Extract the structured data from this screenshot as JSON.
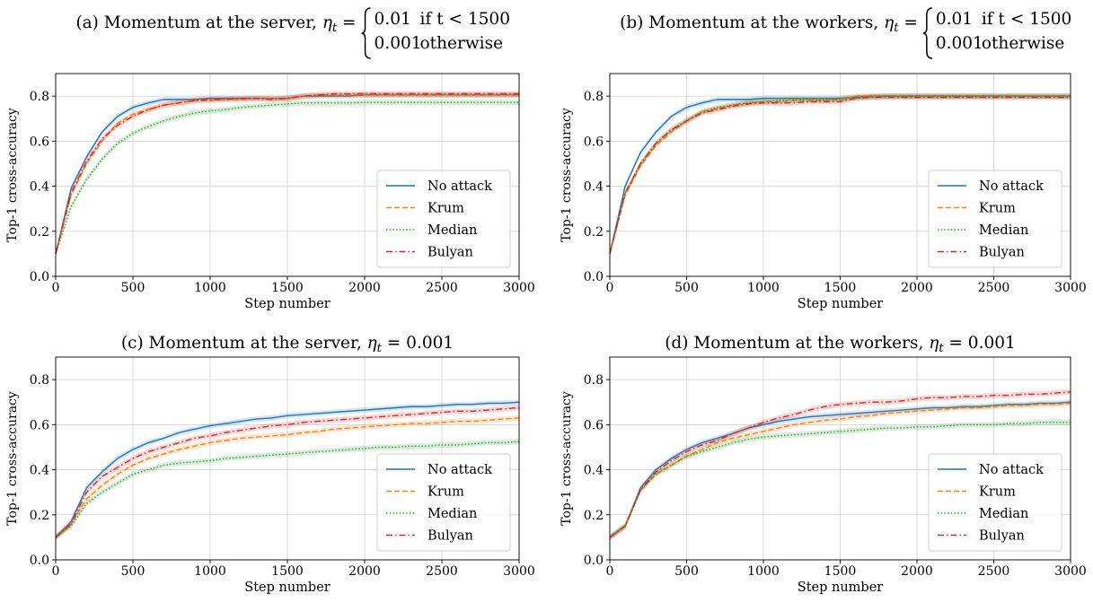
{
  "chart_data": [
    {
      "type": "line",
      "title_prefix": "(a) Momentum at the server, ",
      "title_math": "η",
      "title_sub": "t",
      "title_eq": " =",
      "piecewise": [
        [
          "0.01",
          "if t < 1500"
        ],
        [
          "0.001",
          "otherwise"
        ]
      ],
      "xlabel": "Step number",
      "ylabel": "Top-1 cross-accuracy",
      "xlim": [
        0,
        3000
      ],
      "ylim": [
        0,
        0.9
      ],
      "xticks": [
        0,
        500,
        1000,
        1500,
        2000,
        2500,
        3000
      ],
      "yticks": [
        0.0,
        0.2,
        0.4,
        0.6,
        0.8
      ],
      "grid": true,
      "legend": "lower right",
      "x": [
        0,
        100,
        200,
        300,
        400,
        500,
        600,
        700,
        800,
        900,
        1000,
        1100,
        1200,
        1300,
        1400,
        1500,
        1600,
        1700,
        1800,
        1900,
        2000,
        2100,
        2200,
        2300,
        2400,
        2500,
        2600,
        2700,
        2800,
        2900,
        3000
      ],
      "series": [
        {
          "name": "No attack",
          "color": "#1f77b4",
          "dash": "solid",
          "values": [
            0.1,
            0.39,
            0.53,
            0.64,
            0.71,
            0.75,
            0.77,
            0.785,
            0.785,
            0.785,
            0.79,
            0.79,
            0.79,
            0.79,
            0.79,
            0.79,
            0.8,
            0.8,
            0.8,
            0.8,
            0.805,
            0.805,
            0.805,
            0.805,
            0.805,
            0.805,
            0.805,
            0.805,
            0.805,
            0.805,
            0.805
          ]
        },
        {
          "name": "Krum",
          "color": "#ff7f0e",
          "dash": "dashed",
          "values": [
            0.1,
            0.36,
            0.5,
            0.6,
            0.68,
            0.72,
            0.74,
            0.76,
            0.77,
            0.78,
            0.78,
            0.785,
            0.785,
            0.79,
            0.79,
            0.79,
            0.8,
            0.805,
            0.805,
            0.805,
            0.805,
            0.805,
            0.805,
            0.805,
            0.805,
            0.805,
            0.805,
            0.805,
            0.805,
            0.805,
            0.805
          ]
        },
        {
          "name": "Median",
          "color": "#2ca02c",
          "dash": "dotted",
          "values": [
            0.1,
            0.31,
            0.43,
            0.52,
            0.59,
            0.635,
            0.665,
            0.69,
            0.71,
            0.725,
            0.735,
            0.74,
            0.75,
            0.755,
            0.76,
            0.765,
            0.77,
            0.77,
            0.77,
            0.77,
            0.772,
            0.772,
            0.772,
            0.772,
            0.772,
            0.772,
            0.772,
            0.772,
            0.772,
            0.772,
            0.772
          ]
        },
        {
          "name": "Bulyan",
          "color": "#d62728",
          "dash": "dashdot",
          "values": [
            0.1,
            0.37,
            0.51,
            0.61,
            0.67,
            0.71,
            0.74,
            0.76,
            0.77,
            0.78,
            0.785,
            0.785,
            0.79,
            0.79,
            0.785,
            0.79,
            0.8,
            0.805,
            0.81,
            0.81,
            0.81,
            0.81,
            0.81,
            0.81,
            0.81,
            0.81,
            0.81,
            0.81,
            0.81,
            0.81,
            0.81
          ]
        }
      ]
    },
    {
      "type": "line",
      "title_prefix": "(b) Momentum at the workers, ",
      "title_math": "η",
      "title_sub": "t",
      "title_eq": " =",
      "piecewise": [
        [
          "0.01",
          "if t < 1500"
        ],
        [
          "0.001",
          "otherwise"
        ]
      ],
      "xlabel": "Step number",
      "ylabel": "Top-1 cross-accuracy",
      "xlim": [
        0,
        3000
      ],
      "ylim": [
        0,
        0.9
      ],
      "xticks": [
        0,
        500,
        1000,
        1500,
        2000,
        2500,
        3000
      ],
      "yticks": [
        0.0,
        0.2,
        0.4,
        0.6,
        0.8
      ],
      "grid": true,
      "legend": "lower right",
      "x": [
        0,
        100,
        200,
        300,
        400,
        500,
        600,
        700,
        800,
        900,
        1000,
        1100,
        1200,
        1300,
        1400,
        1500,
        1600,
        1700,
        1800,
        1900,
        2000,
        2100,
        2200,
        2300,
        2400,
        2500,
        2600,
        2700,
        2800,
        2900,
        3000
      ],
      "series": [
        {
          "name": "No attack",
          "color": "#1f77b4",
          "dash": "solid",
          "values": [
            0.1,
            0.4,
            0.55,
            0.64,
            0.71,
            0.75,
            0.77,
            0.785,
            0.785,
            0.785,
            0.79,
            0.79,
            0.79,
            0.79,
            0.79,
            0.79,
            0.795,
            0.8,
            0.8,
            0.8,
            0.8,
            0.8,
            0.8,
            0.8,
            0.8,
            0.8,
            0.8,
            0.8,
            0.8,
            0.8,
            0.8
          ]
        },
        {
          "name": "Krum",
          "color": "#ff7f0e",
          "dash": "dashed",
          "values": [
            0.1,
            0.36,
            0.49,
            0.58,
            0.64,
            0.69,
            0.73,
            0.745,
            0.76,
            0.77,
            0.775,
            0.775,
            0.78,
            0.78,
            0.78,
            0.785,
            0.8,
            0.8,
            0.8,
            0.8,
            0.8,
            0.8,
            0.8,
            0.8,
            0.8,
            0.8,
            0.8,
            0.8,
            0.8,
            0.8,
            0.8
          ]
        },
        {
          "name": "Median",
          "color": "#2ca02c",
          "dash": "dotted",
          "values": [
            0.1,
            0.37,
            0.5,
            0.59,
            0.65,
            0.69,
            0.73,
            0.75,
            0.76,
            0.77,
            0.775,
            0.78,
            0.785,
            0.785,
            0.785,
            0.785,
            0.79,
            0.795,
            0.8,
            0.8,
            0.8,
            0.8,
            0.8,
            0.8,
            0.8,
            0.8,
            0.8,
            0.8,
            0.8,
            0.8,
            0.8
          ]
        },
        {
          "name": "Bulyan",
          "color": "#d62728",
          "dash": "dashdot",
          "values": [
            0.1,
            0.37,
            0.5,
            0.59,
            0.65,
            0.69,
            0.725,
            0.74,
            0.755,
            0.765,
            0.77,
            0.77,
            0.77,
            0.775,
            0.775,
            0.775,
            0.79,
            0.795,
            0.795,
            0.795,
            0.795,
            0.795,
            0.795,
            0.795,
            0.795,
            0.795,
            0.795,
            0.795,
            0.795,
            0.795,
            0.795
          ]
        }
      ]
    },
    {
      "type": "line",
      "title_prefix": "(c) Momentum at the server, ",
      "title_math": "η",
      "title_sub": "t",
      "title_eq": " = 0.001",
      "piecewise": [],
      "xlabel": "Step number",
      "ylabel": "Top-1 cross-accuracy",
      "xlim": [
        0,
        3000
      ],
      "ylim": [
        0,
        0.9
      ],
      "xticks": [
        0,
        500,
        1000,
        1500,
        2000,
        2500,
        3000
      ],
      "yticks": [
        0.0,
        0.2,
        0.4,
        0.6,
        0.8
      ],
      "grid": true,
      "legend": "lower right",
      "x": [
        0,
        100,
        200,
        300,
        400,
        500,
        600,
        700,
        800,
        900,
        1000,
        1100,
        1200,
        1300,
        1400,
        1500,
        1600,
        1700,
        1800,
        1900,
        2000,
        2100,
        2200,
        2300,
        2400,
        2500,
        2600,
        2700,
        2800,
        2900,
        3000
      ],
      "series": [
        {
          "name": "No attack",
          "color": "#1f77b4",
          "dash": "solid",
          "values": [
            0.1,
            0.17,
            0.32,
            0.39,
            0.45,
            0.49,
            0.52,
            0.54,
            0.565,
            0.58,
            0.595,
            0.605,
            0.615,
            0.625,
            0.63,
            0.64,
            0.645,
            0.65,
            0.655,
            0.66,
            0.665,
            0.67,
            0.675,
            0.68,
            0.68,
            0.685,
            0.69,
            0.69,
            0.695,
            0.695,
            0.7
          ]
        },
        {
          "name": "Krum",
          "color": "#ff7f0e",
          "dash": "dashed",
          "values": [
            0.1,
            0.16,
            0.27,
            0.33,
            0.38,
            0.42,
            0.45,
            0.47,
            0.49,
            0.505,
            0.52,
            0.53,
            0.54,
            0.545,
            0.55,
            0.555,
            0.565,
            0.57,
            0.58,
            0.585,
            0.59,
            0.595,
            0.6,
            0.605,
            0.605,
            0.61,
            0.615,
            0.615,
            0.62,
            0.625,
            0.63
          ]
        },
        {
          "name": "Median",
          "color": "#2ca02c",
          "dash": "dotted",
          "values": [
            0.1,
            0.15,
            0.25,
            0.3,
            0.34,
            0.38,
            0.4,
            0.42,
            0.43,
            0.435,
            0.44,
            0.45,
            0.455,
            0.46,
            0.465,
            0.47,
            0.475,
            0.48,
            0.485,
            0.49,
            0.495,
            0.5,
            0.5,
            0.505,
            0.505,
            0.51,
            0.51,
            0.515,
            0.52,
            0.52,
            0.525
          ]
        },
        {
          "name": "Bulyan",
          "color": "#d62728",
          "dash": "dashdot",
          "values": [
            0.1,
            0.16,
            0.3,
            0.37,
            0.41,
            0.45,
            0.48,
            0.5,
            0.52,
            0.54,
            0.55,
            0.565,
            0.575,
            0.585,
            0.595,
            0.6,
            0.61,
            0.615,
            0.62,
            0.625,
            0.63,
            0.635,
            0.64,
            0.645,
            0.65,
            0.655,
            0.66,
            0.66,
            0.665,
            0.67,
            0.675
          ]
        }
      ]
    },
    {
      "type": "line",
      "title_prefix": "(d) Momentum at the workers, ",
      "title_math": "η",
      "title_sub": "t",
      "title_eq": " = 0.001",
      "piecewise": [],
      "xlabel": "Step number",
      "ylabel": "Top-1 cross-accuracy",
      "xlim": [
        0,
        3000
      ],
      "ylim": [
        0,
        0.9
      ],
      "xticks": [
        0,
        500,
        1000,
        1500,
        2000,
        2500,
        3000
      ],
      "yticks": [
        0.0,
        0.2,
        0.4,
        0.6,
        0.8
      ],
      "grid": true,
      "legend": "lower right",
      "x": [
        0,
        100,
        200,
        300,
        400,
        500,
        600,
        700,
        800,
        900,
        1000,
        1100,
        1200,
        1300,
        1400,
        1500,
        1600,
        1700,
        1800,
        1900,
        2000,
        2100,
        2200,
        2300,
        2400,
        2500,
        2600,
        2700,
        2800,
        2900,
        3000
      ],
      "series": [
        {
          "name": "No attack",
          "color": "#1f77b4",
          "dash": "solid",
          "values": [
            0.1,
            0.15,
            0.32,
            0.4,
            0.45,
            0.49,
            0.52,
            0.54,
            0.56,
            0.585,
            0.6,
            0.615,
            0.625,
            0.635,
            0.64,
            0.645,
            0.65,
            0.655,
            0.66,
            0.665,
            0.67,
            0.675,
            0.675,
            0.68,
            0.68,
            0.685,
            0.69,
            0.69,
            0.695,
            0.695,
            0.7
          ]
        },
        {
          "name": "Krum",
          "color": "#ff7f0e",
          "dash": "dashed",
          "values": [
            0.1,
            0.15,
            0.31,
            0.38,
            0.42,
            0.46,
            0.49,
            0.52,
            0.54,
            0.555,
            0.57,
            0.585,
            0.6,
            0.61,
            0.62,
            0.625,
            0.635,
            0.64,
            0.65,
            0.655,
            0.66,
            0.665,
            0.67,
            0.675,
            0.675,
            0.68,
            0.685,
            0.685,
            0.69,
            0.69,
            0.695
          ]
        },
        {
          "name": "Median",
          "color": "#2ca02c",
          "dash": "dotted",
          "values": [
            0.1,
            0.15,
            0.31,
            0.38,
            0.42,
            0.46,
            0.48,
            0.5,
            0.52,
            0.535,
            0.545,
            0.55,
            0.555,
            0.56,
            0.565,
            0.57,
            0.575,
            0.58,
            0.585,
            0.585,
            0.59,
            0.59,
            0.595,
            0.6,
            0.6,
            0.6,
            0.605,
            0.605,
            0.61,
            0.61,
            0.61
          ]
        },
        {
          "name": "Bulyan",
          "color": "#d62728",
          "dash": "dashdot",
          "values": [
            0.1,
            0.15,
            0.31,
            0.39,
            0.44,
            0.48,
            0.51,
            0.53,
            0.56,
            0.585,
            0.61,
            0.63,
            0.645,
            0.665,
            0.68,
            0.69,
            0.695,
            0.7,
            0.7,
            0.705,
            0.715,
            0.72,
            0.72,
            0.725,
            0.725,
            0.73,
            0.73,
            0.735,
            0.735,
            0.74,
            0.745
          ]
        }
      ]
    }
  ]
}
